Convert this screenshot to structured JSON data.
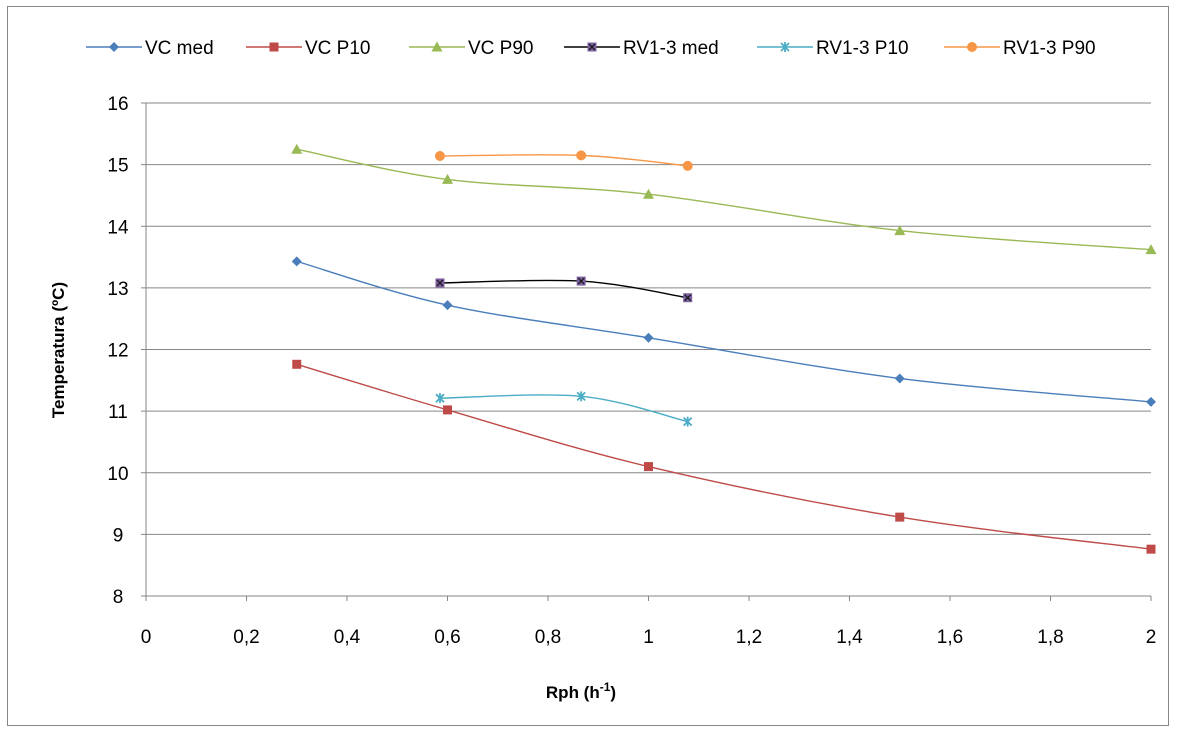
{
  "chart_data": {
    "type": "line",
    "xlabel": "Rph (h",
    "xlabel_sup": "-1",
    "xlabel_suffix": ")",
    "ylabel": "Temperatura (ºC)",
    "xlim": [
      0,
      2
    ],
    "ylim": [
      8,
      16
    ],
    "x_ticks": [
      0,
      0.2,
      0.4,
      0.6,
      0.8,
      1,
      1.2,
      1.4,
      1.6,
      1.8,
      2
    ],
    "x_tick_labels": [
      "0",
      "0,2",
      "0,4",
      "0,6",
      "0,8",
      "1",
      "1,2",
      "1,4",
      "1,6",
      "1,8",
      "2"
    ],
    "y_ticks": [
      8,
      9,
      10,
      11,
      12,
      13,
      14,
      15,
      16
    ],
    "y_tick_labels": [
      "8",
      "9",
      "10",
      "11",
      "12",
      "13",
      "14",
      "15",
      "16"
    ],
    "grid": "horizontal",
    "legend_position": "top",
    "smooth_lines": true,
    "series": [
      {
        "name": "VC med",
        "color": "#4a7ebb",
        "marker": "diamond",
        "x": [
          0.3,
          0.6,
          1.0,
          1.5,
          2.0
        ],
        "y": [
          13.43,
          12.72,
          12.19,
          11.53,
          11.15
        ]
      },
      {
        "name": "VC P10",
        "color": "#be4b48",
        "marker": "square",
        "x": [
          0.3,
          0.6,
          1.0,
          1.5,
          2.0
        ],
        "y": [
          11.76,
          11.02,
          10.1,
          9.28,
          8.76
        ]
      },
      {
        "name": "VC P90",
        "color": "#98b954",
        "marker": "triangle",
        "x": [
          0.3,
          0.6,
          1.0,
          1.5,
          2.0
        ],
        "y": [
          15.25,
          14.76,
          14.52,
          13.93,
          13.62
        ]
      },
      {
        "name": "RV1-3 med",
        "color": "#000000",
        "marker_color": "#7d60a0",
        "marker": "square-x",
        "x": [
          0.585,
          0.866,
          1.078
        ],
        "y": [
          13.08,
          13.11,
          12.84
        ]
      },
      {
        "name": "RV1-3 P10",
        "color": "#4bacc6",
        "marker": "star",
        "x": [
          0.585,
          0.866,
          1.078
        ],
        "y": [
          11.21,
          11.24,
          10.83
        ]
      },
      {
        "name": "RV1-3 P90",
        "color": "#f79646",
        "marker": "circle",
        "x": [
          0.585,
          0.866,
          1.078
        ],
        "y": [
          15.14,
          15.15,
          14.98
        ]
      }
    ]
  }
}
